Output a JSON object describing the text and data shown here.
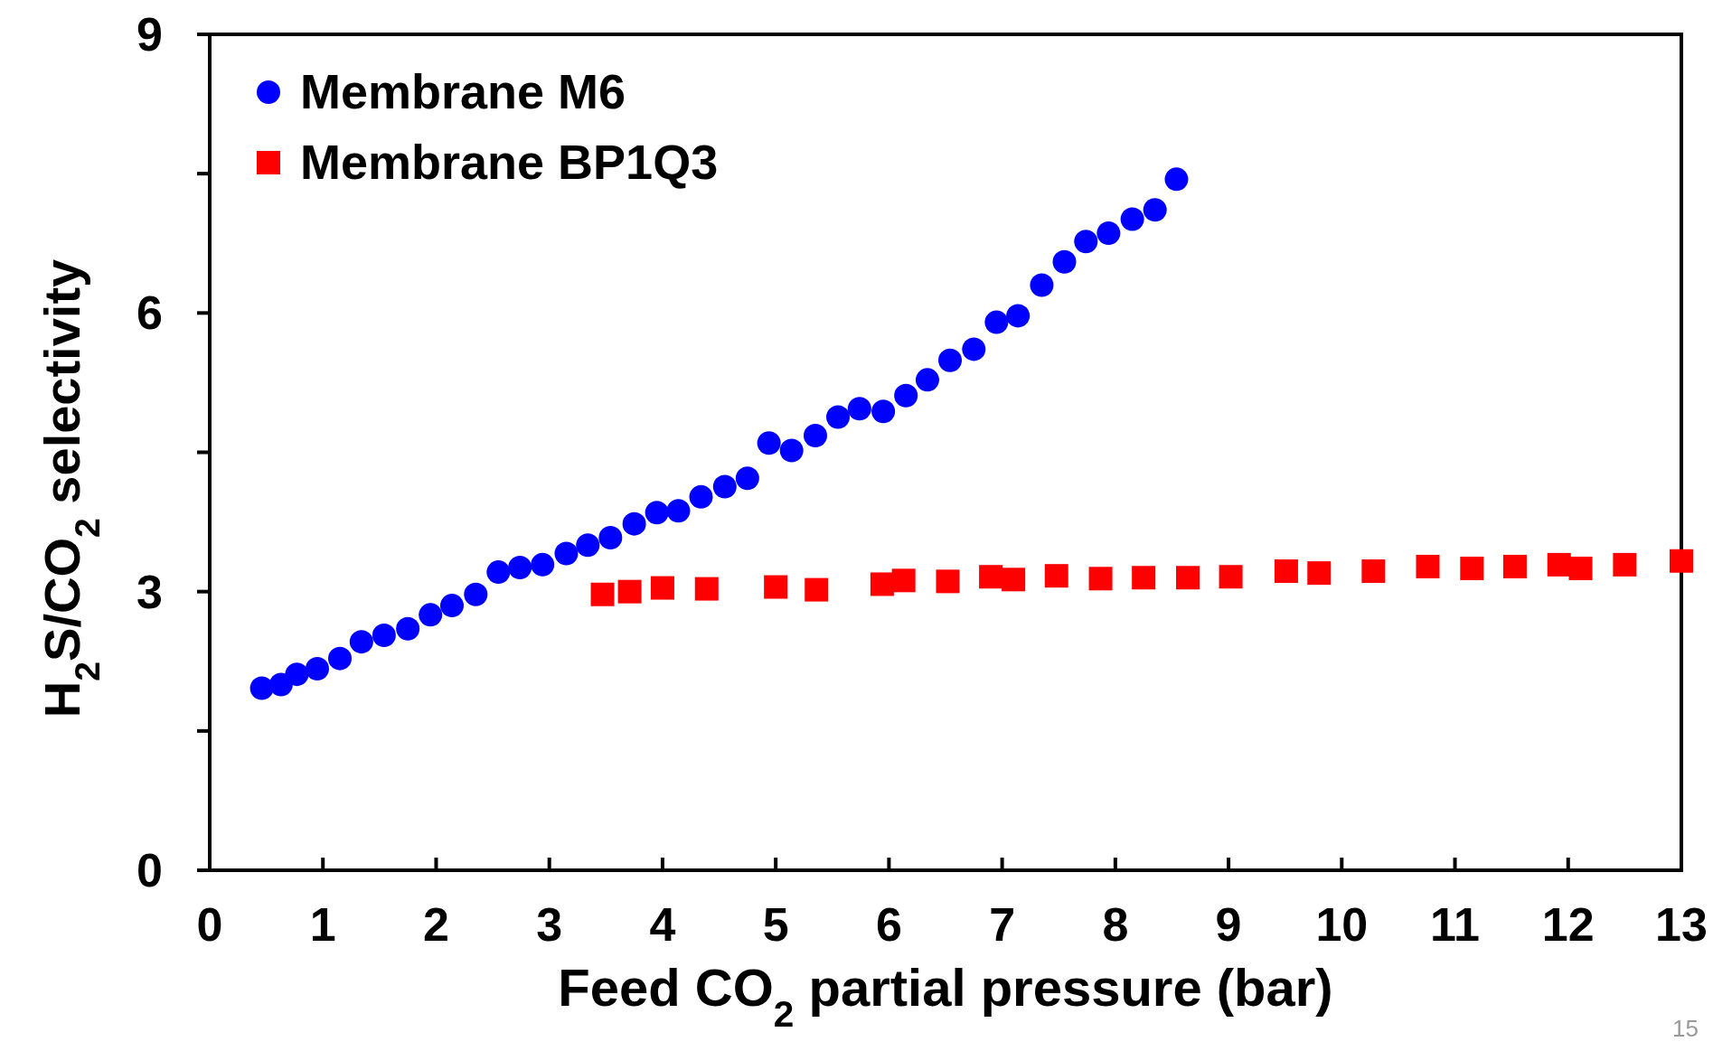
{
  "chart_data": {
    "type": "scatter",
    "xlabel": "Feed CO$_{2}$ partial pressure (bar)",
    "ylabel": "H$_{2}$S/CO$_{2}$ selectivity",
    "xlim": [
      0,
      13
    ],
    "ylim": [
      0,
      9
    ],
    "xticks": [
      0,
      1,
      2,
      3,
      4,
      5,
      6,
      7,
      8,
      9,
      10,
      11,
      12,
      13
    ],
    "yticks": [
      0,
      {
        "value": 1.5,
        "label": null
      },
      3,
      {
        "value": 4.5,
        "label": null
      },
      6,
      {
        "value": 7.5,
        "label": null
      },
      9
    ],
    "grid": false,
    "legend": "top left",
    "annotations": [
      "15"
    ],
    "series": [
      {
        "name": "Membrane M6",
        "color": "#0000ff",
        "marker": "circle",
        "x": [
          0.46,
          0.63,
          0.77,
          0.95,
          1.15,
          1.34,
          1.54,
          1.75,
          1.95,
          2.14,
          2.35,
          2.55,
          2.74,
          2.94,
          3.15,
          3.34,
          3.54,
          3.75,
          3.95,
          4.14,
          4.34,
          4.55,
          4.75,
          4.94,
          5.14,
          5.35,
          5.55,
          5.74,
          5.95,
          6.15,
          6.34,
          6.54,
          6.75,
          6.95,
          7.14,
          7.35,
          7.55,
          7.74,
          7.94,
          8.15,
          8.35,
          8.54
        ],
        "values": [
          1.96,
          2.0,
          2.11,
          2.17,
          2.28,
          2.46,
          2.53,
          2.6,
          2.75,
          2.85,
          2.97,
          3.21,
          3.26,
          3.29,
          3.41,
          3.5,
          3.58,
          3.73,
          3.85,
          3.87,
          4.02,
          4.13,
          4.22,
          4.6,
          4.52,
          4.68,
          4.88,
          4.97,
          4.94,
          5.11,
          5.28,
          5.49,
          5.61,
          5.9,
          5.97,
          6.3,
          6.55,
          6.77,
          6.86,
          7.01,
          7.11,
          7.44
        ]
      },
      {
        "name": "Membrane BP1Q3",
        "color": "#ff0000",
        "marker": "square",
        "x": [
          3.47,
          3.71,
          4.0,
          4.39,
          5.0,
          5.36,
          5.94,
          6.13,
          6.52,
          6.9,
          7.1,
          7.48,
          7.87,
          8.25,
          8.64,
          9.02,
          9.51,
          9.8,
          10.28,
          10.76,
          11.15,
          11.53,
          11.92,
          12.11,
          12.5,
          13.0
        ],
        "values": [
          2.97,
          3.0,
          3.04,
          3.03,
          3.05,
          3.02,
          3.08,
          3.12,
          3.11,
          3.16,
          3.13,
          3.17,
          3.14,
          3.15,
          3.15,
          3.16,
          3.22,
          3.2,
          3.22,
          3.27,
          3.25,
          3.27,
          3.29,
          3.25,
          3.29,
          3.33
        ]
      }
    ]
  }
}
